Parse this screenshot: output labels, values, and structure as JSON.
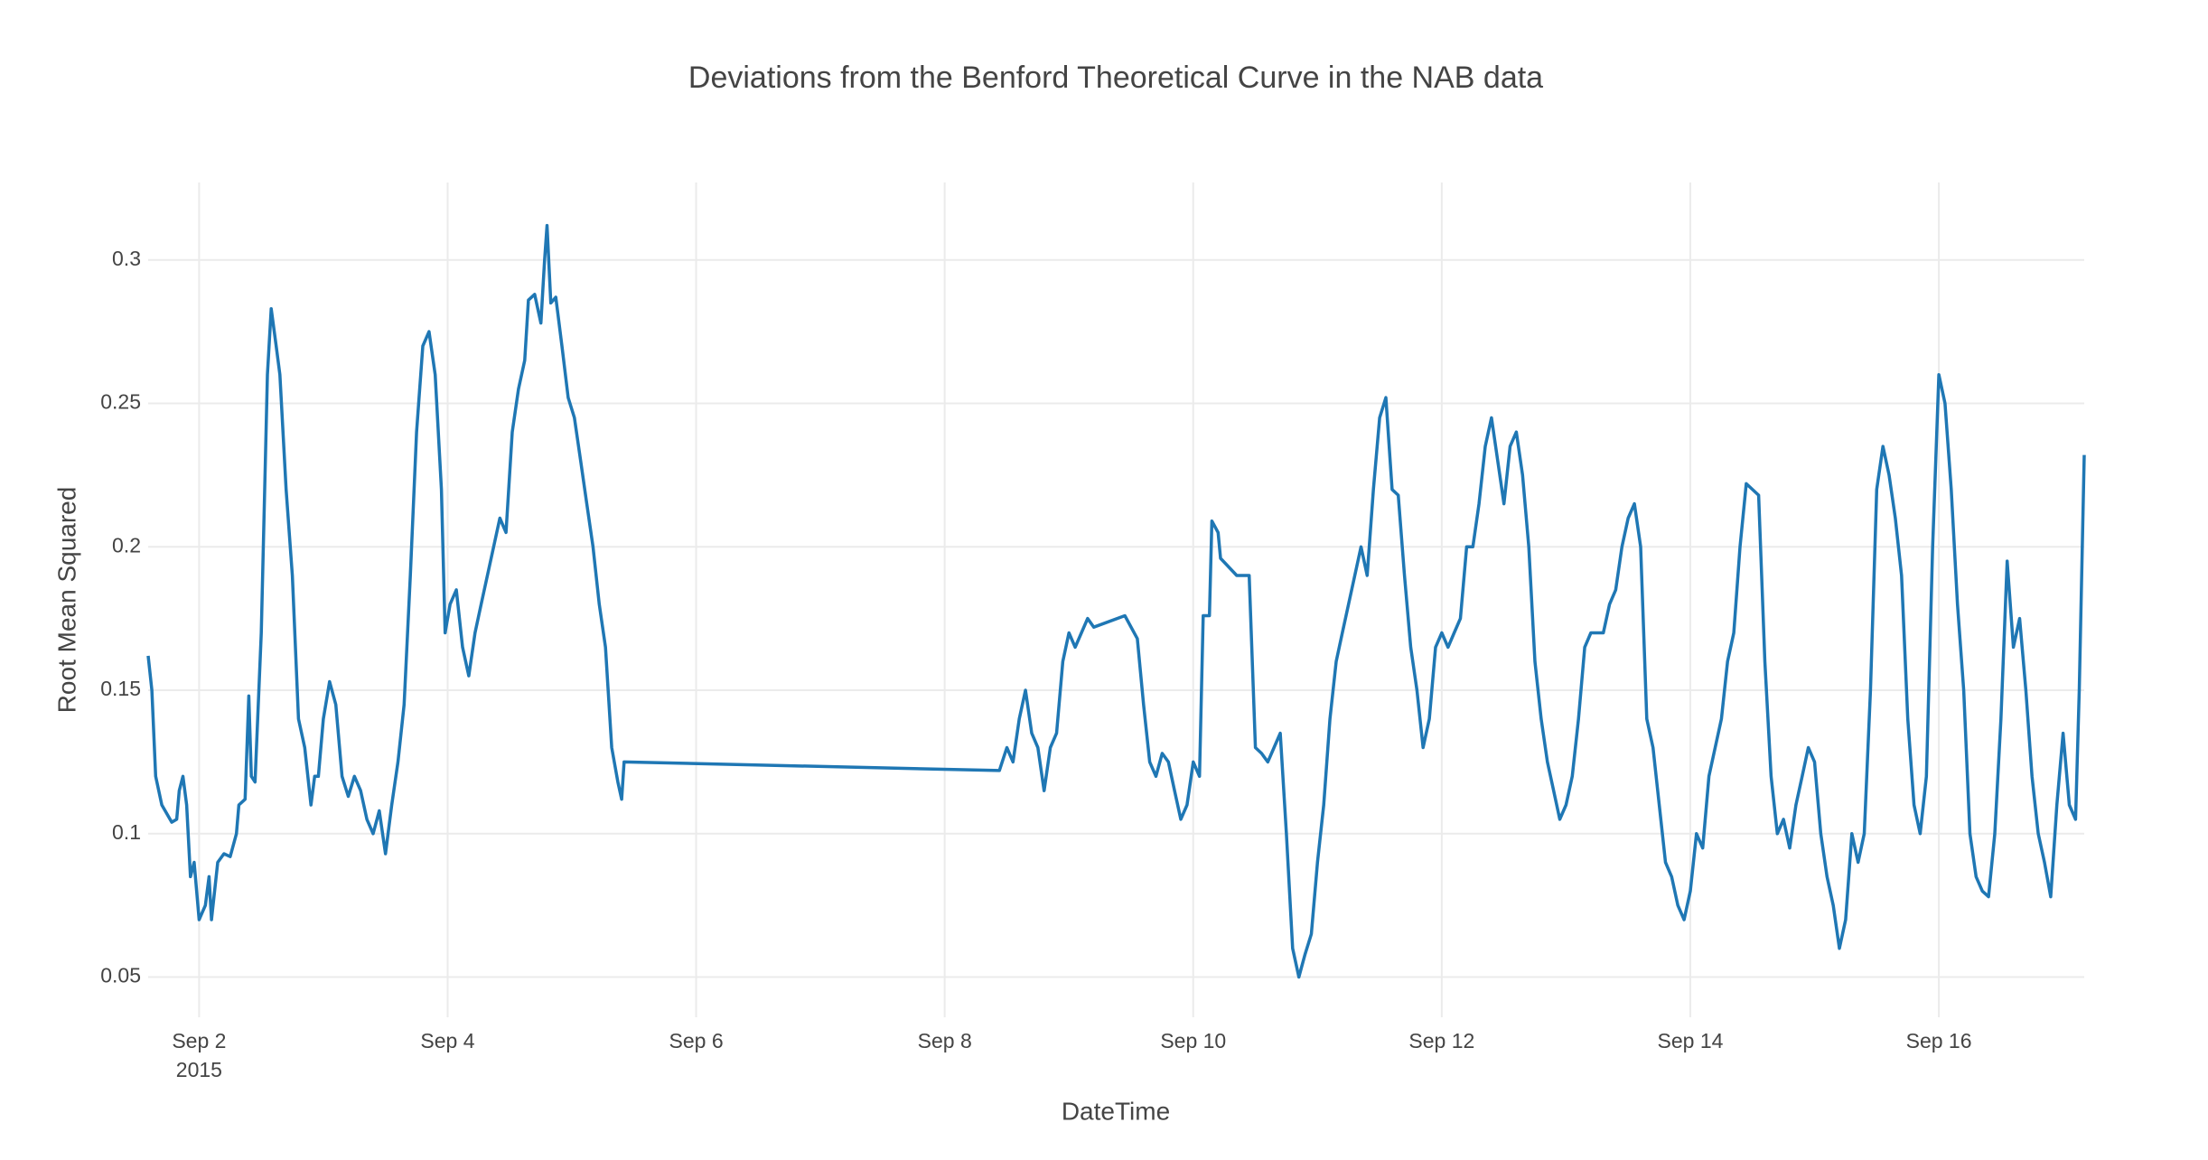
{
  "chart_data": {
    "type": "line",
    "title": "Deviations from the Benford Theoretical Curve in the NAB data",
    "x_label": "DateTime",
    "y_label": "Root Mean Squared",
    "color": "#1f77b4",
    "grid": true,
    "xlim": [
      1.59,
      17.17
    ],
    "ylim": [
      0.036,
      0.327
    ],
    "xticks": [
      {
        "value": 2,
        "label": "Sep 2"
      },
      {
        "value": 4,
        "label": "Sep 4"
      },
      {
        "value": 6,
        "label": "Sep 6"
      },
      {
        "value": 8,
        "label": "Sep 8"
      },
      {
        "value": 10,
        "label": "Sep 10"
      },
      {
        "value": 12,
        "label": "Sep 12"
      },
      {
        "value": 14,
        "label": "Sep 14"
      },
      {
        "value": 16,
        "label": "Sep 16"
      }
    ],
    "xtick_sublabel": "2015",
    "yticks": [
      0.05,
      0.1,
      0.15,
      0.2,
      0.25,
      0.3
    ],
    "x": [
      1.59,
      1.62,
      1.65,
      1.7,
      1.78,
      1.82,
      1.84,
      1.87,
      1.9,
      1.93,
      1.96,
      2.0,
      2.05,
      2.08,
      2.1,
      2.15,
      2.2,
      2.25,
      2.3,
      2.32,
      2.37,
      2.4,
      2.42,
      2.45,
      2.5,
      2.55,
      2.58,
      2.62,
      2.65,
      2.7,
      2.75,
      2.8,
      2.85,
      2.9,
      2.93,
      2.96,
      3.0,
      3.05,
      3.1,
      3.15,
      3.2,
      3.25,
      3.3,
      3.35,
      3.4,
      3.45,
      3.5,
      3.55,
      3.6,
      3.65,
      3.7,
      3.75,
      3.8,
      3.85,
      3.9,
      3.95,
      3.98,
      4.02,
      4.07,
      4.12,
      4.17,
      4.22,
      4.27,
      4.32,
      4.37,
      4.42,
      4.47,
      4.52,
      4.57,
      4.62,
      4.65,
      4.7,
      4.75,
      4.78,
      4.8,
      4.83,
      4.87,
      4.92,
      4.97,
      5.02,
      5.07,
      5.12,
      5.17,
      5.22,
      5.27,
      5.32,
      5.37,
      5.4,
      5.42,
      8.44,
      8.5,
      8.55,
      8.6,
      8.65,
      8.7,
      8.75,
      8.8,
      8.85,
      8.9,
      8.95,
      9.0,
      9.05,
      9.1,
      9.15,
      9.2,
      9.45,
      9.55,
      9.6,
      9.65,
      9.7,
      9.75,
      9.8,
      9.85,
      9.9,
      9.95,
      10.0,
      10.05,
      10.08,
      10.13,
      10.15,
      10.2,
      10.22,
      10.35,
      10.4,
      10.45,
      10.5,
      10.55,
      10.6,
      10.65,
      10.7,
      10.75,
      10.8,
      10.85,
      10.9,
      10.95,
      11.0,
      11.05,
      11.1,
      11.15,
      11.2,
      11.25,
      11.3,
      11.35,
      11.4,
      11.45,
      11.5,
      11.55,
      11.6,
      11.65,
      11.7,
      11.75,
      11.8,
      11.85,
      11.9,
      11.95,
      12.0,
      12.05,
      12.1,
      12.15,
      12.2,
      12.25,
      12.3,
      12.35,
      12.4,
      12.45,
      12.5,
      12.55,
      12.6,
      12.65,
      12.7,
      12.75,
      12.8,
      12.85,
      12.9,
      12.95,
      13.0,
      13.05,
      13.1,
      13.15,
      13.2,
      13.3,
      13.35,
      13.4,
      13.45,
      13.5,
      13.55,
      13.6,
      13.65,
      13.7,
      13.75,
      13.8,
      13.85,
      13.9,
      13.95,
      14.0,
      14.05,
      14.1,
      14.15,
      14.2,
      14.25,
      14.3,
      14.35,
      14.4,
      14.45,
      14.55,
      14.6,
      14.65,
      14.7,
      14.75,
      14.8,
      14.85,
      14.9,
      14.95,
      15.0,
      15.05,
      15.1,
      15.15,
      15.2,
      15.25,
      15.3,
      15.35,
      15.4,
      15.45,
      15.5,
      15.55,
      15.6,
      15.65,
      15.7,
      15.75,
      15.8,
      15.85,
      15.9,
      15.95,
      16.0,
      16.05,
      16.1,
      16.15,
      16.2,
      16.25,
      16.3,
      16.35,
      16.4,
      16.45,
      16.5,
      16.55,
      16.6,
      16.65,
      16.7,
      16.75,
      16.8,
      16.85,
      16.9,
      16.95,
      17.0,
      17.05,
      17.1,
      17.13,
      17.17
    ],
    "values": [
      0.162,
      0.15,
      0.12,
      0.11,
      0.104,
      0.105,
      0.115,
      0.12,
      0.11,
      0.085,
      0.09,
      0.07,
      0.075,
      0.085,
      0.07,
      0.09,
      0.093,
      0.092,
      0.1,
      0.11,
      0.112,
      0.148,
      0.12,
      0.118,
      0.17,
      0.26,
      0.283,
      0.27,
      0.26,
      0.22,
      0.19,
      0.14,
      0.13,
      0.11,
      0.12,
      0.12,
      0.14,
      0.153,
      0.145,
      0.12,
      0.113,
      0.12,
      0.115,
      0.105,
      0.1,
      0.108,
      0.093,
      0.11,
      0.125,
      0.145,
      0.19,
      0.24,
      0.27,
      0.275,
      0.26,
      0.22,
      0.17,
      0.18,
      0.185,
      0.165,
      0.155,
      0.17,
      0.18,
      0.19,
      0.2,
      0.21,
      0.205,
      0.24,
      0.255,
      0.265,
      0.286,
      0.288,
      0.278,
      0.3,
      0.312,
      0.285,
      0.287,
      0.27,
      0.252,
      0.245,
      0.23,
      0.215,
      0.2,
      0.18,
      0.165,
      0.13,
      0.118,
      0.112,
      0.125,
      0.122,
      0.13,
      0.125,
      0.14,
      0.15,
      0.135,
      0.13,
      0.115,
      0.13,
      0.135,
      0.16,
      0.17,
      0.165,
      0.17,
      0.175,
      0.172,
      0.176,
      0.168,
      0.145,
      0.125,
      0.12,
      0.128,
      0.125,
      0.115,
      0.105,
      0.11,
      0.125,
      0.12,
      0.176,
      0.176,
      0.209,
      0.205,
      0.196,
      0.19,
      0.19,
      0.19,
      0.13,
      0.128,
      0.125,
      0.13,
      0.135,
      0.1,
      0.06,
      0.05,
      0.058,
      0.065,
      0.09,
      0.11,
      0.14,
      0.16,
      0.17,
      0.18,
      0.19,
      0.2,
      0.19,
      0.22,
      0.245,
      0.252,
      0.22,
      0.218,
      0.19,
      0.165,
      0.15,
      0.13,
      0.14,
      0.165,
      0.17,
      0.165,
      0.17,
      0.175,
      0.2,
      0.2,
      0.215,
      0.235,
      0.245,
      0.23,
      0.215,
      0.235,
      0.24,
      0.225,
      0.2,
      0.16,
      0.14,
      0.125,
      0.115,
      0.105,
      0.11,
      0.12,
      0.14,
      0.165,
      0.17,
      0.17,
      0.18,
      0.185,
      0.2,
      0.21,
      0.215,
      0.2,
      0.14,
      0.13,
      0.11,
      0.09,
      0.085,
      0.075,
      0.07,
      0.08,
      0.1,
      0.095,
      0.12,
      0.13,
      0.14,
      0.16,
      0.17,
      0.2,
      0.222,
      0.218,
      0.16,
      0.12,
      0.1,
      0.105,
      0.095,
      0.11,
      0.12,
      0.13,
      0.125,
      0.1,
      0.085,
      0.075,
      0.06,
      0.07,
      0.1,
      0.09,
      0.1,
      0.15,
      0.22,
      0.235,
      0.225,
      0.21,
      0.19,
      0.14,
      0.11,
      0.1,
      0.12,
      0.2,
      0.26,
      0.25,
      0.22,
      0.18,
      0.15,
      0.1,
      0.085,
      0.08,
      0.078,
      0.1,
      0.14,
      0.195,
      0.165,
      0.175,
      0.15,
      0.12,
      0.1,
      0.09,
      0.078,
      0.11,
      0.135,
      0.11,
      0.105,
      0.15,
      0.232
    ]
  }
}
